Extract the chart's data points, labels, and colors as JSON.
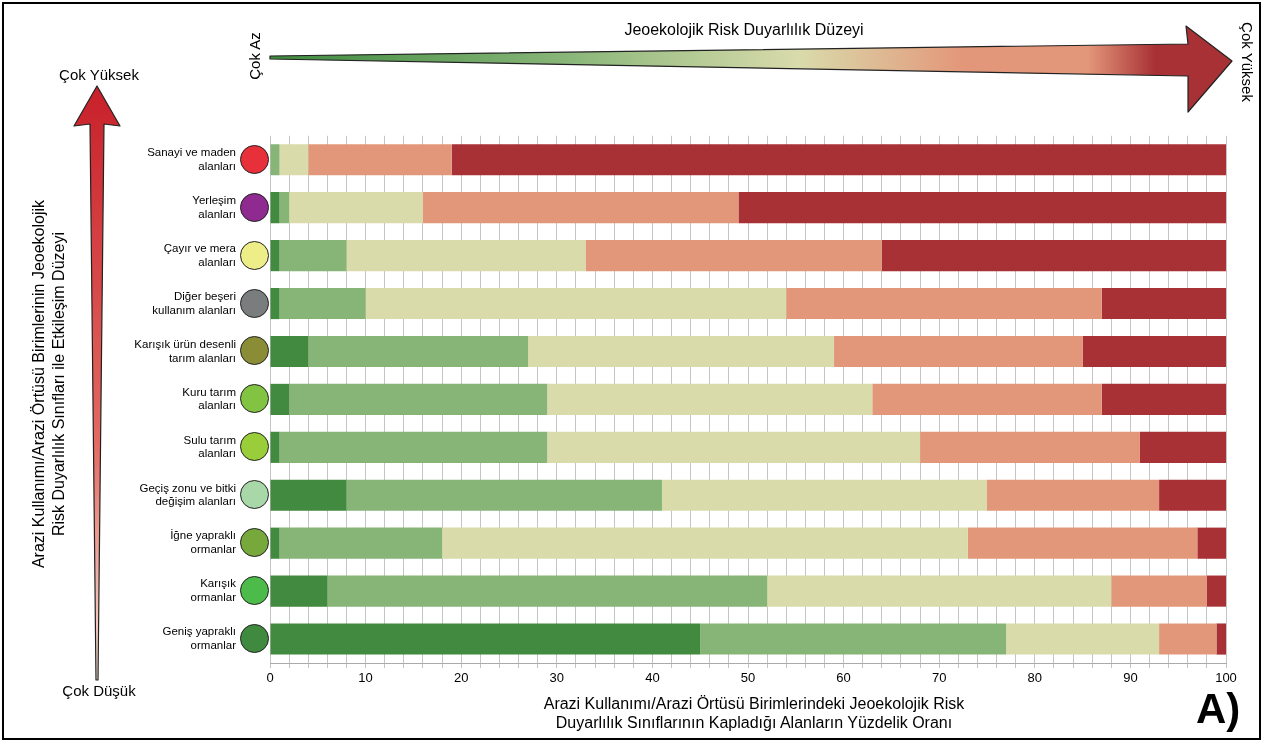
{
  "chart_data": {
    "type": "bar",
    "orientation": "horizontal",
    "stacked": true,
    "categories": [
      "Sanayi ve maden alanları",
      "Yerleşim alanları",
      "Çayır ve mera alanları",
      "Diğer beşeri kullanım alanları",
      "Karışık ürün desenli tarım alanları",
      "Kuru tarım alanları",
      "Sulu tarım alanları",
      "Geçiş zonu ve bitki değişim alanları",
      "İğne yapraklı ormanlar",
      "Karışık ormanlar",
      "Geniş yapraklı ormanlar"
    ],
    "series": [
      {
        "color": "#428a3f",
        "values": [
          0,
          1,
          1,
          1,
          4,
          2,
          1,
          8,
          1,
          6,
          45
        ]
      },
      {
        "color": "#86b577",
        "values": [
          1,
          1,
          7,
          9,
          23,
          27,
          28,
          33,
          17,
          46,
          32
        ]
      },
      {
        "color": "#d9dbab",
        "values": [
          3,
          14,
          25,
          44,
          32,
          34,
          39,
          34,
          55,
          36,
          16
        ]
      },
      {
        "color": "#e3977a",
        "values": [
          15,
          33,
          31,
          33,
          26,
          24,
          23,
          18,
          24,
          10,
          6
        ]
      },
      {
        "color": "#a83136",
        "values": [
          81,
          51,
          36,
          13,
          15,
          13,
          9,
          7,
          3,
          2,
          1
        ]
      }
    ],
    "xlim": [
      0,
      100
    ],
    "xticks": [
      0,
      {
        "value": 2,
        "label": null
      },
      {
        "value": 4,
        "label": null
      },
      {
        "value": 6,
        "label": null
      },
      {
        "value": 8,
        "label": null
      },
      10,
      {
        "value": 12,
        "label": null
      },
      {
        "value": 14,
        "label": null
      },
      {
        "value": 16,
        "label": null
      },
      {
        "value": 18,
        "label": null
      },
      20,
      {
        "value": 22,
        "label": null
      },
      {
        "value": 24,
        "label": null
      },
      {
        "value": 26,
        "label": null
      },
      {
        "value": 28,
        "label": null
      },
      30,
      {
        "value": 32,
        "label": null
      },
      {
        "value": 34,
        "label": null
      },
      {
        "value": 36,
        "label": null
      },
      {
        "value": 38,
        "label": null
      },
      40,
      {
        "value": 42,
        "label": null
      },
      {
        "value": 44,
        "label": null
      },
      {
        "value": 46,
        "label": null
      },
      {
        "value": 48,
        "label": null
      },
      50,
      {
        "value": 52,
        "label": null
      },
      {
        "value": 54,
        "label": null
      },
      {
        "value": 56,
        "label": null
      },
      {
        "value": 58,
        "label": null
      },
      60,
      {
        "value": 62,
        "label": null
      },
      {
        "value": 64,
        "label": null
      },
      {
        "value": 66,
        "label": null
      },
      {
        "value": 68,
        "label": null
      },
      70,
      {
        "value": 72,
        "label": null
      },
      {
        "value": 74,
        "label": null
      },
      {
        "value": 76,
        "label": null
      },
      {
        "value": 78,
        "label": null
      },
      80,
      {
        "value": 82,
        "label": null
      },
      {
        "value": 84,
        "label": null
      },
      {
        "value": 86,
        "label": null
      },
      {
        "value": 88,
        "label": null
      },
      90,
      {
        "value": 92,
        "label": null
      },
      {
        "value": 94,
        "label": null
      },
      {
        "value": 96,
        "label": null
      },
      {
        "value": 98,
        "label": null
      },
      100
    ],
    "grid": "x",
    "xlabel": "Arazi Kullanımı/Arazi Örtüsü Birimlerindeki Jeoekolojik Risk Duyarlılık Sınıflarının Kapladığı Alanların Yüzdelik Oranı",
    "ylabel": "Arazi Kullanımı/Arazi Örtüsü Birimlerinin Jeoekolojik Risk Duyarlılık Sınıfları ile Etkileşim Düzeyi",
    "annotations": [
      "Jeoekolojik Risk Duyarlılık Düzeyi",
      "Çok Az",
      "Çok Yüksek",
      "Çok Yüksek",
      "Çok Düşük",
      "A)"
    ]
  }
}
